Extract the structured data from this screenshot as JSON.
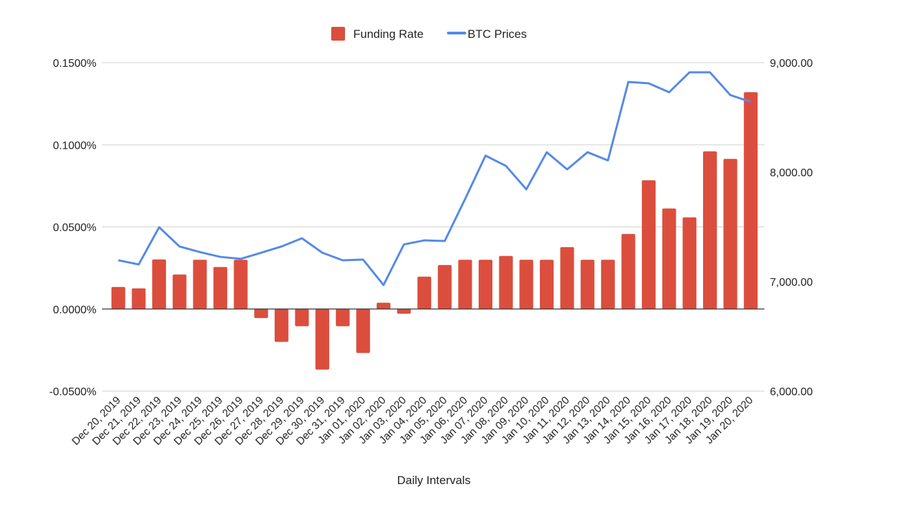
{
  "chart_data": {
    "type": "bar+line",
    "xlabel": "Daily Intervals",
    "legend_position": "top",
    "grid": true,
    "categories": [
      "Dec 20, 2019",
      "Dec 21, 2019",
      "Dec 22, 2019",
      "Dec 23, 2019",
      "Dec 24, 2019",
      "Dec 25, 2019",
      "Dec 26, 2019",
      "Dec 27, 2019",
      "Dec 28, 2019",
      "Dec 29, 2019",
      "Dec 30, 2019",
      "Dec 31, 2019",
      "Jan 01, 2020",
      "Jan 02, 2020",
      "Jan 03, 2020",
      "Jan 04, 2020",
      "Jan 05, 2020",
      "Jan 06, 2020",
      "Jan 07, 2020",
      "Jan 08, 2020",
      "Jan 09, 2020",
      "Jan 10, 2020",
      "Jan 11, 2020",
      "Jan 12, 2020",
      "Jan 13, 2020",
      "Jan 14, 2020",
      "Jan 15, 2020",
      "Jan 16, 2020",
      "Jan 17, 2020",
      "Jan 18, 2020",
      "Jan 19, 2020",
      "Jan 20, 2020"
    ],
    "series": [
      {
        "name": "Funding Rate",
        "type": "bar",
        "axis": "left",
        "color": "#db4e3d",
        "unit": "%",
        "values": [
          0.0134,
          0.0126,
          0.0302,
          0.021,
          0.03,
          0.0256,
          0.03,
          -0.0055,
          -0.02,
          -0.0105,
          -0.0369,
          -0.0105,
          -0.0268,
          0.0038,
          -0.0029,
          0.0197,
          0.0268,
          0.03,
          0.03,
          0.0323,
          0.03,
          0.03,
          0.0377,
          0.03,
          0.03,
          0.0457,
          0.0784,
          0.0612,
          0.0558,
          0.096,
          0.0914,
          0.132
        ]
      },
      {
        "name": "BTC Prices",
        "type": "line",
        "axis": "right",
        "color": "#5589e8",
        "values": [
          7195,
          7157,
          7497,
          7321,
          7270,
          7226,
          7208,
          7264,
          7321,
          7396,
          7264,
          7195,
          7201,
          6969,
          7340,
          7377,
          7371,
          7755,
          8151,
          8057,
          7843,
          8182,
          8025,
          8182,
          8107,
          8824,
          8811,
          8730,
          8912,
          8912,
          8704,
          8642
        ]
      }
    ],
    "left_axis": {
      "ylim": [
        -0.05,
        0.15
      ],
      "ticks": [
        "-0.0500%",
        "0.0000%",
        "0.0500%",
        "0.1000%",
        "0.1500%"
      ],
      "tick_values": [
        -0.05,
        0,
        0.05,
        0.1,
        0.15
      ]
    },
    "right_axis": {
      "ylim": [
        6000,
        9000
      ],
      "ticks": [
        "6,000.00",
        "7,000.00",
        "8,000.00",
        "9,000.00"
      ],
      "tick_values": [
        6000,
        7000,
        8000,
        9000
      ]
    }
  }
}
